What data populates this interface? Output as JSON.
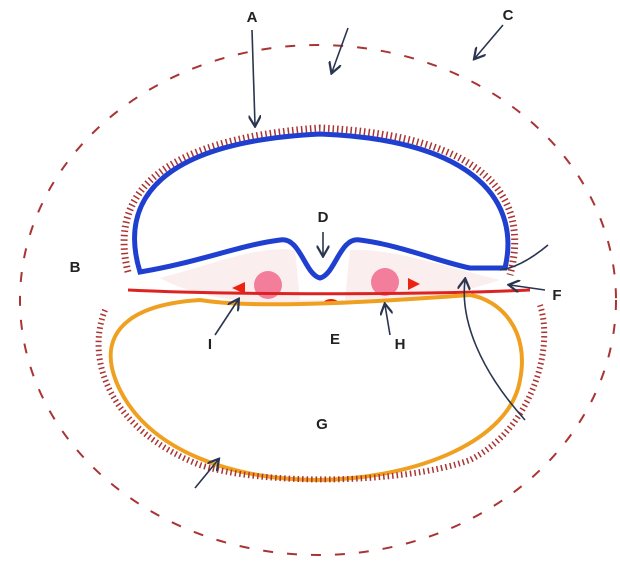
{
  "labels": [
    "A",
    "B",
    "C",
    "D",
    "E",
    "F",
    "G",
    "H",
    "I"
  ]
}
